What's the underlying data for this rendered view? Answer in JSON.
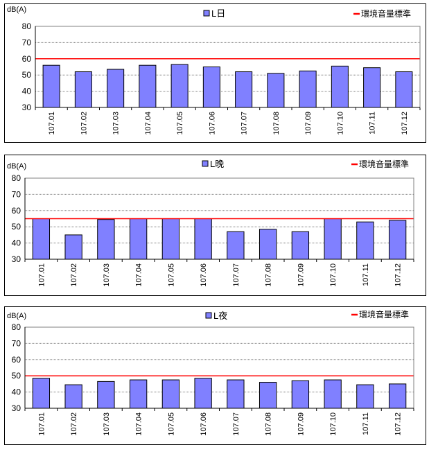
{
  "colors": {
    "bar_fill": "#8080ff",
    "bar_stroke": "#000000",
    "standard_line": "#ff0000",
    "grid": "#808080",
    "panel_border": "#000000"
  },
  "chart_data": [
    {
      "type": "bar",
      "ylabel": "dB(A)",
      "legend_series": "L日",
      "legend_standard": "環境音量標準",
      "categories": [
        "107.01",
        "107.02",
        "107.03",
        "107.04",
        "107.05",
        "107.06",
        "107.07",
        "107.08",
        "107.09",
        "107.10",
        "107.11",
        "107.12"
      ],
      "values": [
        56,
        52,
        53.5,
        56,
        56.5,
        55,
        52,
        51,
        52.5,
        55.5,
        54.5,
        52
      ],
      "standard": 60,
      "ylim": [
        30,
        80
      ],
      "yticks": [
        "30",
        "40",
        "50",
        "60",
        "70",
        "80"
      ],
      "grid": true,
      "legend_position": "top"
    },
    {
      "type": "bar",
      "ylabel": "dB(A)",
      "legend_series": "L晚",
      "legend_standard": "環境音量標準",
      "categories": [
        "107.01",
        "107.02",
        "107.03",
        "107.04",
        "107.05",
        "107.06",
        "107.07",
        "107.08",
        "107.09",
        "107.10",
        "107.11",
        "107.12"
      ],
      "values": [
        55,
        45,
        54.5,
        55,
        55,
        55,
        47,
        48.5,
        47,
        55,
        53,
        54
      ],
      "standard": 55,
      "ylim": [
        30,
        80
      ],
      "yticks": [
        "30",
        "40",
        "50",
        "60",
        "70",
        "80"
      ],
      "grid": true,
      "legend_position": "top"
    },
    {
      "type": "bar",
      "ylabel": "dB(A)",
      "legend_series": "L夜",
      "legend_standard": "環境音量標準",
      "categories": [
        "107.01",
        "107.02",
        "107.03",
        "107.04",
        "107.05",
        "107.06",
        "107.07",
        "107.08",
        "107.09",
        "107.10",
        "107.11",
        "107.12"
      ],
      "values": [
        48.5,
        44.5,
        46.5,
        47.5,
        47.5,
        48.5,
        47.5,
        46,
        47,
        47.5,
        44.5,
        45
      ],
      "standard": 50,
      "ylim": [
        30,
        80
      ],
      "yticks": [
        "30",
        "40",
        "50",
        "60",
        "70",
        "80"
      ],
      "grid": true,
      "legend_position": "top"
    }
  ]
}
